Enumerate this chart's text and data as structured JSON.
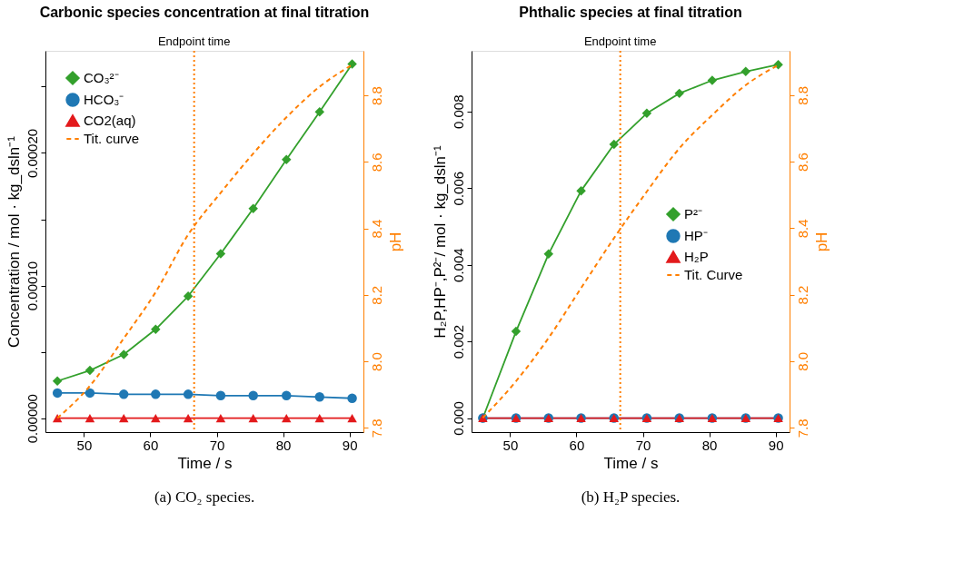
{
  "chart_data": [
    {
      "type": "line",
      "title": "Carbonic species concentration at final titration",
      "xlabel": "Time / s",
      "ylabel": "Concentration / mol · kg_dsln⁻¹",
      "y2label": "pH",
      "x": [
        46.0,
        50.9,
        56.0,
        60.8,
        65.7,
        70.6,
        75.5,
        80.5,
        85.5,
        90.4
      ],
      "series": [
        {
          "name": "CO₃²⁻",
          "color": "#33a02c",
          "marker": "diamond",
          "values": [
            2.8e-05,
            3.6e-05,
            4.8e-05,
            6.7e-05,
            9.2e-05,
            0.000124,
            0.000158,
            0.000195,
            0.000231,
            0.000267
          ]
        },
        {
          "name": "HCO₃⁻",
          "color": "#1f78b4",
          "marker": "circle",
          "values": [
            1.9e-05,
            1.9e-05,
            1.8e-05,
            1.8e-05,
            1.8e-05,
            1.7e-05,
            1.7e-05,
            1.7e-05,
            1.6e-05,
            1.5e-05
          ]
        },
        {
          "name": "CO2(aq)",
          "color": "#e31a1c",
          "marker": "triangle",
          "values": [
            0,
            0,
            0,
            0,
            0,
            0,
            0,
            0,
            0,
            0
          ]
        },
        {
          "name": "Tit. curve",
          "color": "#ff7f00",
          "axis": "y2",
          "marker": "none",
          "line_style": "dashed",
          "values": [
            7.829,
            7.926,
            8.069,
            8.208,
            8.381,
            8.507,
            8.625,
            8.734,
            8.826,
            8.892
          ]
        }
      ],
      "xlim": [
        44.2,
        92.1
      ],
      "xticks": [
        50,
        60,
        70,
        80,
        90
      ],
      "ylim": [
        -1.05e-05,
        0.000277
      ],
      "yticks": [
        {
          "value": 0,
          "label": "0.00000"
        },
        {
          "value": 5e-05,
          "label": null
        },
        {
          "value": 0.0001,
          "label": "0.00010"
        },
        {
          "value": 0.00015,
          "label": null
        },
        {
          "value": 0.0002,
          "label": "0.00020"
        },
        {
          "value": 0.00025,
          "label": null
        }
      ],
      "y2lim": [
        7.787,
        8.934
      ],
      "y2ticks": [
        {
          "value": 7.8,
          "label": "7.8"
        },
        {
          "value": 8.0,
          "label": "8.0"
        },
        {
          "value": 8.2,
          "label": "8.2"
        },
        {
          "value": 8.4,
          "label": "8.4"
        },
        {
          "value": 8.6,
          "label": "8.6"
        },
        {
          "value": 8.8,
          "label": "8.8"
        }
      ],
      "ref_lines": [
        {
          "axis": "x",
          "value": 66.6,
          "label": "Endpoint time",
          "color": "#ff7f00",
          "line_style": "dotted"
        }
      ],
      "annotations": [
        "(a) CO₂ species."
      ],
      "grid": false,
      "legend": "top left"
    },
    {
      "type": "line",
      "title": "Phthalic species at final titration",
      "xlabel": "Time / s",
      "ylabel": "H₂P,HP⁻,P²⁻/ mol · kg_dsln⁻¹",
      "y2label": "pH",
      "x": [
        45.9,
        50.9,
        55.8,
        60.7,
        65.65,
        70.6,
        75.5,
        80.45,
        85.5,
        90.4
      ],
      "series": [
        {
          "name": "P²⁻",
          "color": "#33a02c",
          "marker": "diamond",
          "values": [
            0,
            0.00226,
            0.00428,
            0.00593,
            0.00714,
            0.00795,
            0.00847,
            0.00881,
            0.00904,
            0.00922
          ]
        },
        {
          "name": "HP⁻",
          "color": "#1f78b4",
          "marker": "circle",
          "values": [
            0,
            0,
            0,
            0,
            0,
            0,
            0,
            0,
            0,
            0
          ]
        },
        {
          "name": "H₂P",
          "color": "#e31a1c",
          "marker": "triangle",
          "values": [
            0,
            0,
            0,
            0,
            0,
            0,
            0,
            0,
            0,
            0
          ]
        },
        {
          "name": "Tit. Curve",
          "color": "#ff7f00",
          "axis": "y2",
          "marker": "none",
          "line_style": "dashed",
          "values": [
            7.83,
            7.94,
            8.07,
            8.22,
            8.37,
            8.51,
            8.64,
            8.74,
            8.83,
            8.89
          ]
        }
      ],
      "xlim": [
        44.2,
        92.1
      ],
      "xticks": [
        50,
        60,
        70,
        80,
        90
      ],
      "ylim": [
        -0.000366,
        0.00958
      ],
      "yticks": [
        {
          "value": 0,
          "label": "0.000"
        },
        {
          "value": 0.002,
          "label": "0.002"
        },
        {
          "value": 0.004,
          "label": "0.004"
        },
        {
          "value": 0.006,
          "label": "0.006"
        },
        {
          "value": 0.008,
          "label": "0.008"
        }
      ],
      "y2lim": [
        7.787,
        8.933
      ],
      "y2ticks": [
        {
          "value": 7.8,
          "label": "7.8"
        },
        {
          "value": 8.0,
          "label": "8.0"
        },
        {
          "value": 8.2,
          "label": "8.2"
        },
        {
          "value": 8.4,
          "label": "8.4"
        },
        {
          "value": 8.6,
          "label": "8.6"
        },
        {
          "value": 8.8,
          "label": "8.8"
        }
      ],
      "ref_lines": [
        {
          "axis": "x",
          "value": 66.6,
          "label": "Endpoint time",
          "color": "#ff7f00",
          "line_style": "dotted"
        }
      ],
      "annotations": [
        "(b) H₂P species."
      ],
      "grid": false,
      "legend": "right"
    }
  ]
}
